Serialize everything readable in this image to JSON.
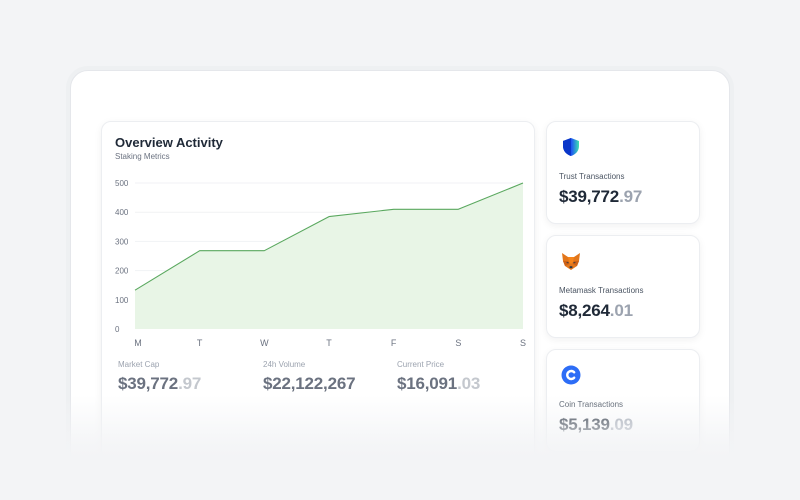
{
  "overview": {
    "title": "Overview Activity",
    "subtitle": "Staking Metrics"
  },
  "chart_data": {
    "type": "area",
    "title": "Overview Activity",
    "subtitle": "Staking Metrics",
    "categories": [
      "M",
      "T",
      "W",
      "T",
      "F",
      "S",
      "S"
    ],
    "series": [
      {
        "name": "Staking Metrics",
        "values": [
          133,
          268,
          268,
          385,
          410,
          410,
          500
        ],
        "color": "#5aa85f",
        "fill": "#e8f5e6"
      }
    ],
    "yticks": [
      0,
      100,
      200,
      300,
      400,
      500
    ],
    "ylim": [
      0,
      500
    ],
    "xlabel": "",
    "ylabel": "",
    "grid": true,
    "legend": "none"
  },
  "stats": [
    {
      "label": "Market Cap",
      "whole": "$39,772",
      "decimal": ".97"
    },
    {
      "label": "24h Volume",
      "whole": "$22,122,267",
      "decimal": ""
    },
    {
      "label": "Current Price",
      "whole": "$16,091",
      "decimal": ".03"
    }
  ],
  "wallets": [
    {
      "icon": "shield-icon",
      "label": "Trust Transactions",
      "whole": "$39,772",
      "decimal": ".97"
    },
    {
      "icon": "fox-icon",
      "label": "Metamask Transactions",
      "whole": "$8,264",
      "decimal": ".01"
    },
    {
      "icon": "coin-icon",
      "label": "Coin Transactions",
      "whole": "$5,139",
      "decimal": ".09"
    }
  ]
}
